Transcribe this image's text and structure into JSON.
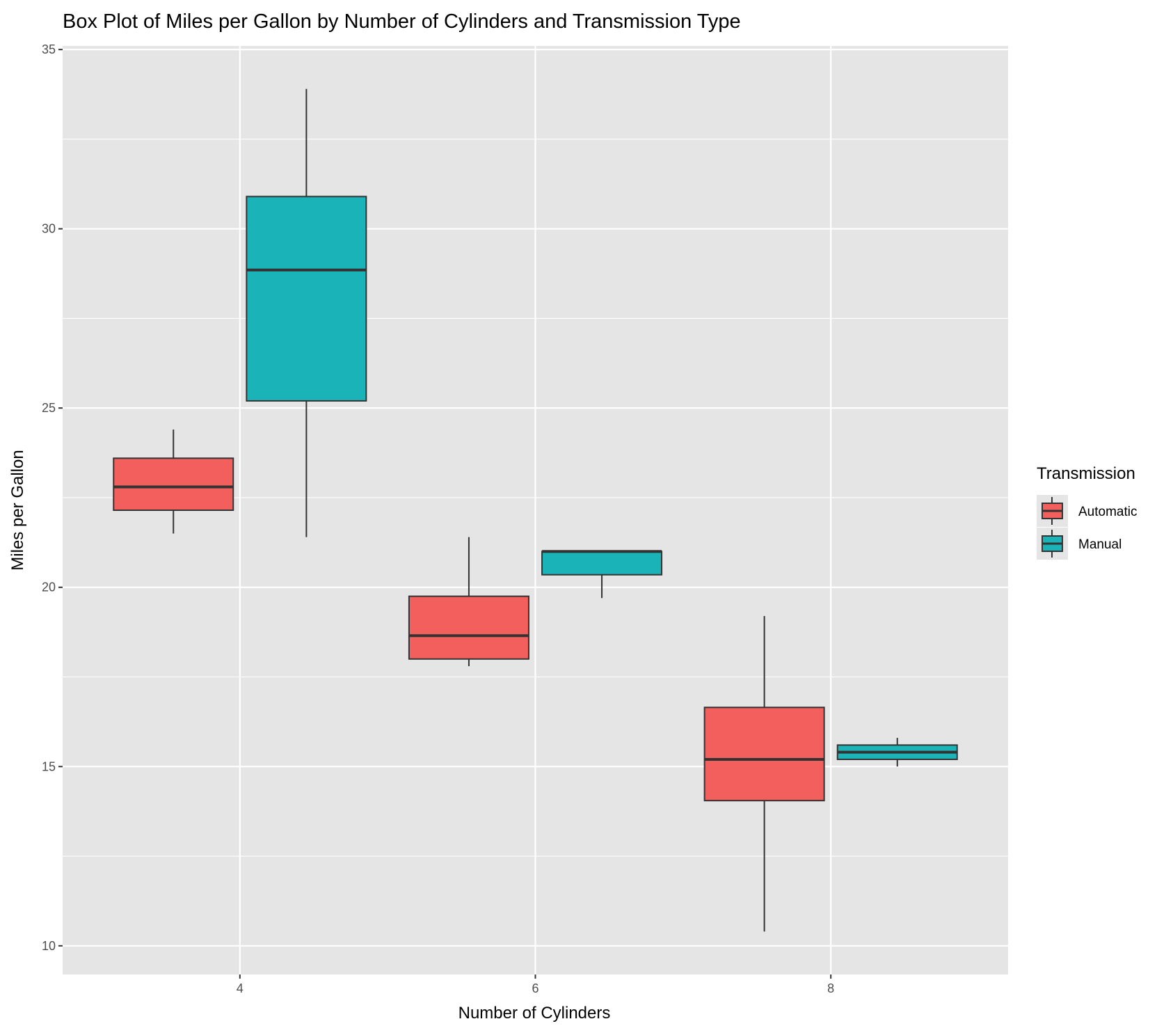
{
  "chart_data": {
    "type": "box",
    "title": "Box Plot of Miles per Gallon by Number of Cylinders and Transmission Type",
    "xlabel": "Number of Cylinders",
    "ylabel": "Miles per Gallon",
    "categories": [
      "4",
      "6",
      "8"
    ],
    "ylim": [
      9.2,
      35.1
    ],
    "yticks": [
      10,
      15,
      20,
      25,
      30,
      35
    ],
    "grid": true,
    "legend": {
      "title": "Transmission",
      "placement": "right"
    },
    "series": [
      {
        "name": "Automatic",
        "color": "#F25F5C",
        "boxes": [
          {
            "category": "4",
            "min": 21.5,
            "q1": 22.15,
            "median": 22.8,
            "q3": 23.6,
            "max": 24.4
          },
          {
            "category": "6",
            "min": 17.8,
            "q1": 18.0,
            "median": 18.65,
            "q3": 19.75,
            "max": 21.4
          },
          {
            "category": "8",
            "min": 10.4,
            "q1": 14.05,
            "median": 15.2,
            "q3": 16.65,
            "max": 19.2
          }
        ]
      },
      {
        "name": "Manual",
        "color": "#19B3B8",
        "boxes": [
          {
            "category": "4",
            "min": 21.4,
            "q1": 25.2,
            "median": 28.85,
            "q3": 30.9,
            "max": 33.9
          },
          {
            "category": "6",
            "min": 19.7,
            "q1": 20.35,
            "median": 21.0,
            "q3": 21.0,
            "max": 21.0
          },
          {
            "category": "8",
            "min": 15.0,
            "q1": 15.2,
            "median": 15.4,
            "q3": 15.6,
            "max": 15.8
          }
        ]
      }
    ]
  }
}
